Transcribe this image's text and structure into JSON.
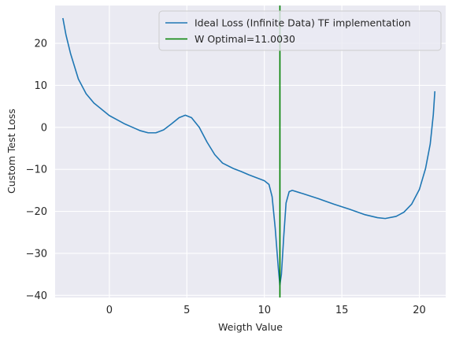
{
  "chart_data": {
    "type": "line",
    "title": "",
    "xlabel": "Weigth Value",
    "ylabel": "Custom Test Loss",
    "xlim": [
      -3.5,
      21.7
    ],
    "ylim": [
      -40.5,
      29
    ],
    "xticks": [
      0,
      5,
      10,
      15,
      20
    ],
    "yticks": [
      -40,
      -30,
      -20,
      -10,
      0,
      10,
      20
    ],
    "grid": true,
    "legend_position": "top-right",
    "series": [
      {
        "name": "Ideal Loss (Infinite Data) TF implementation",
        "color": "#1f77b4",
        "points": [
          [
            -3.0,
            26.0
          ],
          [
            -2.8,
            22.0
          ],
          [
            -2.5,
            17.5
          ],
          [
            -2.0,
            11.5
          ],
          [
            -1.5,
            8.0
          ],
          [
            -1.0,
            5.8
          ],
          [
            -0.5,
            4.3
          ],
          [
            0.0,
            2.8
          ],
          [
            0.5,
            1.8
          ],
          [
            1.0,
            0.8
          ],
          [
            1.5,
            0.0
          ],
          [
            2.0,
            -0.8
          ],
          [
            2.5,
            -1.3
          ],
          [
            3.0,
            -1.3
          ],
          [
            3.5,
            -0.6
          ],
          [
            4.0,
            0.8
          ],
          [
            4.5,
            2.3
          ],
          [
            4.9,
            2.9
          ],
          [
            5.3,
            2.3
          ],
          [
            5.8,
            0.0
          ],
          [
            6.3,
            -3.5
          ],
          [
            6.8,
            -6.5
          ],
          [
            7.3,
            -8.5
          ],
          [
            8.0,
            -9.8
          ],
          [
            8.5,
            -10.5
          ],
          [
            9.0,
            -11.3
          ],
          [
            9.5,
            -12.0
          ],
          [
            10.0,
            -12.7
          ],
          [
            10.3,
            -13.6
          ],
          [
            10.5,
            -16.5
          ],
          [
            10.7,
            -24.0
          ],
          [
            10.9,
            -33.5
          ],
          [
            11.0,
            -37.5
          ],
          [
            11.1,
            -35.0
          ],
          [
            11.25,
            -26.0
          ],
          [
            11.4,
            -18.0
          ],
          [
            11.6,
            -15.3
          ],
          [
            11.8,
            -15.0
          ],
          [
            12.5,
            -15.8
          ],
          [
            13.5,
            -17.0
          ],
          [
            14.5,
            -18.3
          ],
          [
            15.5,
            -19.5
          ],
          [
            16.5,
            -20.8
          ],
          [
            17.3,
            -21.5
          ],
          [
            17.8,
            -21.7
          ],
          [
            18.5,
            -21.2
          ],
          [
            19.0,
            -20.2
          ],
          [
            19.5,
            -18.3
          ],
          [
            20.0,
            -14.8
          ],
          [
            20.4,
            -9.8
          ],
          [
            20.7,
            -4.0
          ],
          [
            20.9,
            3.0
          ],
          [
            21.0,
            8.6
          ]
        ]
      }
    ],
    "vlines": [
      {
        "name": "W Optimal=11.0030",
        "x": 11.003,
        "color": "#008000"
      }
    ]
  }
}
